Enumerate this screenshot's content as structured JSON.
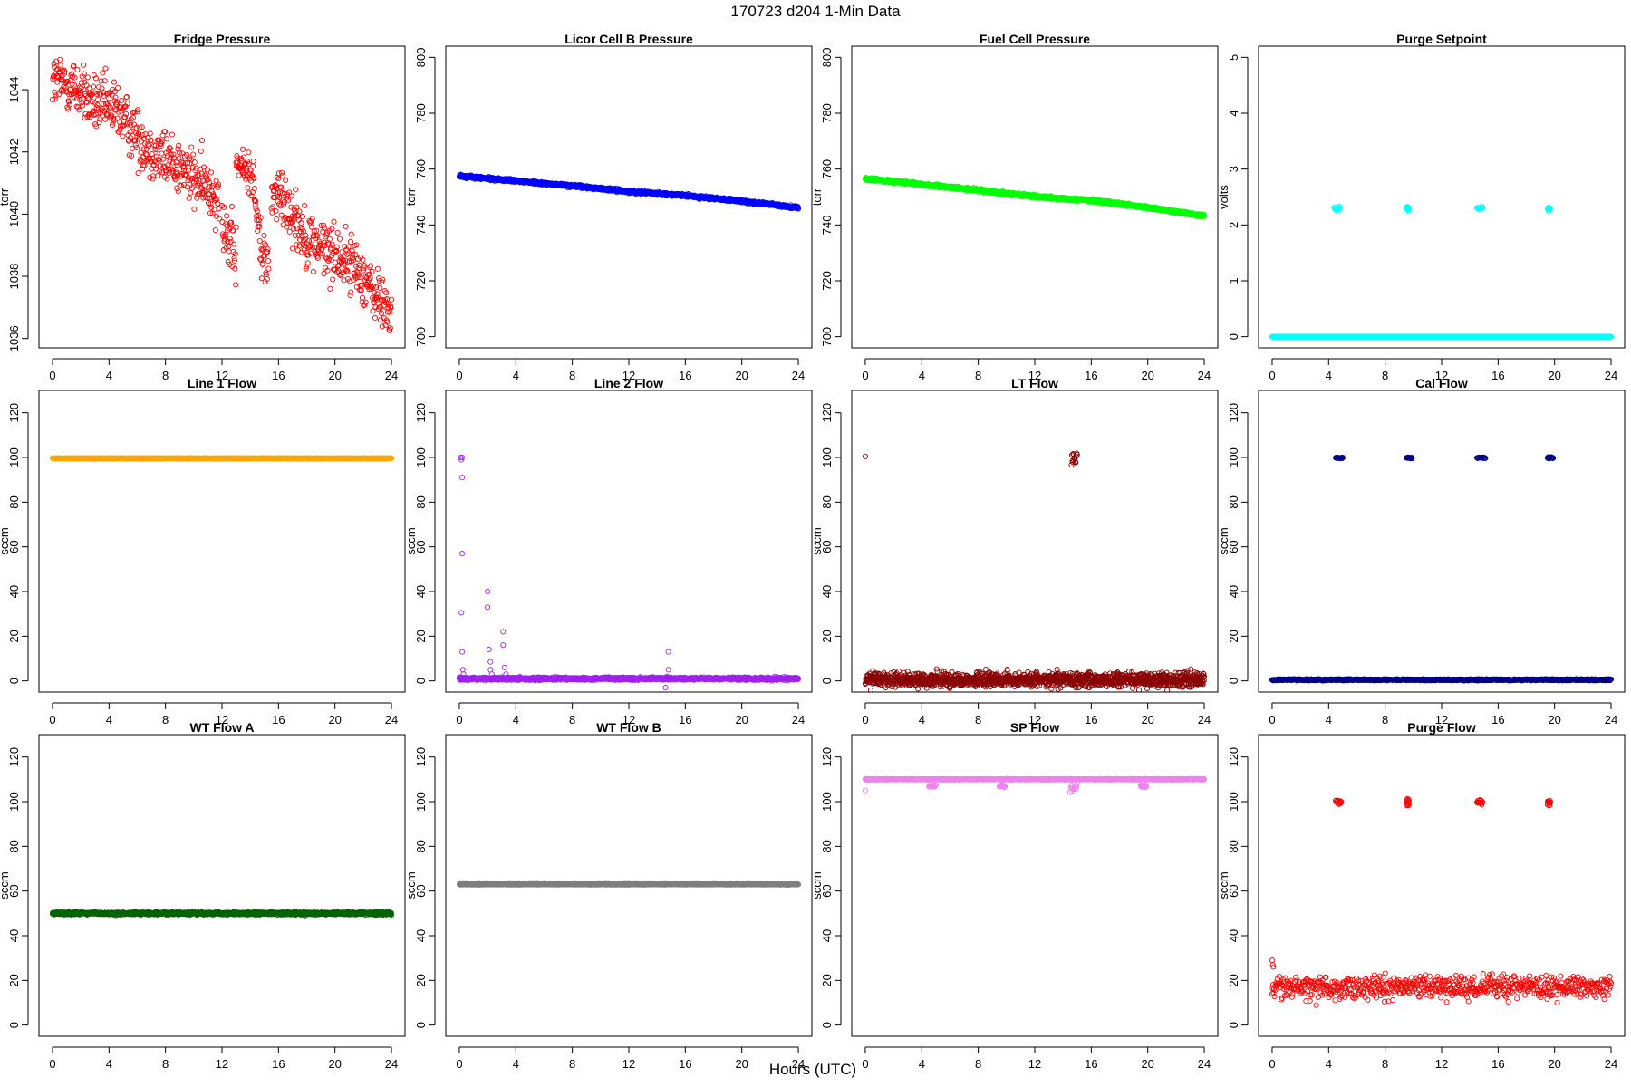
{
  "figure": {
    "title": "170723    d204    1-Min Data",
    "xlabel": "Hours (UTC)"
  },
  "chart_data": [
    {
      "type": "scatter",
      "title": "Fridge Pressure",
      "ylabel": "torr",
      "color": "#ff0000",
      "marker": "open-circle",
      "xlim": [
        -0.96,
        24.96
      ],
      "ylim": [
        1035.7,
        1045.4
      ],
      "xticks": [
        0,
        4,
        8,
        12,
        16,
        20,
        24
      ],
      "yticks": [
        1036,
        1038,
        1040,
        1042,
        1044
      ],
      "series": [
        {
          "segments": [
            {
              "x": [
                0,
                1.5,
                3,
                4.5,
                5.5,
                7,
                8.5,
                9.5,
                10.5,
                11.8
              ],
              "y": [
                1044.3,
                1044.1,
                1043.5,
                1043.4,
                1042.8,
                1042.0,
                1041.7,
                1041.3,
                1041.0,
                1040.6
              ],
              "noise": 0.45
            },
            {
              "x": [
                12.0,
                12.5,
                13.0
              ],
              "y": [
                1040.0,
                1039.0,
                1038.7
              ],
              "noise": 0.5
            },
            {
              "x": [
                13.0,
                13.8,
                14.3
              ],
              "y": [
                1041.6,
                1041.4,
                1041.2
              ],
              "noise": 0.3
            },
            {
              "x": [
                14.3,
                14.9,
                15.3
              ],
              "y": [
                1040.3,
                1038.6,
                1038.3
              ],
              "noise": 0.5
            },
            {
              "x": [
                15.5,
                16.5,
                18,
                20,
                21.5,
                22.5,
                24
              ],
              "y": [
                1040.7,
                1040.4,
                1039.2,
                1038.7,
                1038.3,
                1037.6,
                1036.8
              ],
              "noise": 0.45
            }
          ]
        }
      ],
      "n_points": 900
    },
    {
      "type": "scatter",
      "title": "Licor Cell B Pressure",
      "ylabel": "torr",
      "color": "#0000ff",
      "marker": "open-circle",
      "xlim": [
        -0.96,
        24.96
      ],
      "ylim": [
        696,
        804
      ],
      "xticks": [
        0,
        4,
        8,
        12,
        16,
        20,
        24
      ],
      "yticks": [
        700,
        720,
        740,
        760,
        780,
        800
      ],
      "series": [
        {
          "segments": [
            {
              "x": [
                0,
                3,
                8,
                12,
                16,
                20,
                24
              ],
              "y": [
                757.5,
                756.2,
                754.0,
                752.0,
                750.5,
                748.5,
                746.2
              ],
              "noise": 0.25
            }
          ]
        }
      ],
      "n_points": 1440
    },
    {
      "type": "scatter",
      "title": "Fuel Cell Pressure",
      "ylabel": "torr",
      "color": "#00ff00",
      "marker": "open-circle",
      "xlim": [
        -0.96,
        24.96
      ],
      "ylim": [
        696,
        804
      ],
      "xticks": [
        0,
        4,
        8,
        12,
        16,
        20,
        24
      ],
      "yticks": [
        700,
        720,
        740,
        760,
        780,
        800
      ],
      "series": [
        {
          "segments": [
            {
              "x": [
                0,
                2,
                5,
                8,
                12,
                16,
                20,
                24
              ],
              "y": [
                756.5,
                755.6,
                754.0,
                752.5,
                750.2,
                748.8,
                746.2,
                743.3
              ],
              "noise": 0.25
            }
          ]
        }
      ],
      "n_points": 1440
    },
    {
      "type": "scatter",
      "title": "Purge Setpoint",
      "ylabel": "volts",
      "color": "#00ffff",
      "marker": "open-circle",
      "xlim": [
        -0.96,
        24.96
      ],
      "ylim": [
        -0.2,
        5.2
      ],
      "xticks": [
        0,
        4,
        8,
        12,
        16,
        20,
        24
      ],
      "yticks": [
        0,
        1,
        2,
        3,
        4,
        5
      ],
      "series": [
        {
          "segments": [
            {
              "x": [
                0,
                24
              ],
              "y": [
                0,
                0
              ],
              "noise": 0
            }
          ]
        }
      ],
      "n_points": 1440,
      "clusters": [
        {
          "x": [
            4.4,
            4.8
          ],
          "y": 2.3,
          "noise": 0.02
        },
        {
          "x": [
            9.5,
            9.7
          ],
          "y": 2.3,
          "noise": 0.02
        },
        {
          "x": [
            14.5,
            14.9
          ],
          "y": 2.3,
          "noise": 0.02
        },
        {
          "x": [
            19.5,
            19.7
          ],
          "y": 2.3,
          "noise": 0.02
        }
      ]
    },
    {
      "type": "scatter",
      "title": "Line 1 Flow",
      "ylabel": "sccm",
      "color": "#ffa500",
      "marker": "open-circle",
      "xlim": [
        -0.96,
        24.96
      ],
      "ylim": [
        -5,
        130
      ],
      "xticks": [
        0,
        4,
        8,
        12,
        16,
        20,
        24
      ],
      "yticks": [
        0,
        20,
        40,
        60,
        80,
        100,
        120
      ],
      "series": [
        {
          "segments": [
            {
              "x": [
                0,
                24
              ],
              "y": [
                99.6,
                99.6
              ],
              "noise": 0.1
            }
          ]
        }
      ],
      "n_points": 1440
    },
    {
      "type": "scatter",
      "title": "Line 2 Flow",
      "ylabel": "sccm",
      "color": "#a020f0",
      "marker": "open-circle",
      "xlim": [
        -0.96,
        24.96
      ],
      "ylim": [
        -5,
        130
      ],
      "xticks": [
        0,
        4,
        8,
        12,
        16,
        20,
        24
      ],
      "yticks": [
        0,
        20,
        40,
        60,
        80,
        100,
        120
      ],
      "series": [
        {
          "segments": [
            {
              "x": [
                0,
                24
              ],
              "y": [
                1.0,
                1.0
              ],
              "noise": 0.3
            }
          ]
        }
      ],
      "n_points": 1440,
      "outliers": [
        [
          0.1,
          100
        ],
        [
          0.2,
          100
        ],
        [
          0.15,
          99
        ],
        [
          0.2,
          91
        ],
        [
          0.2,
          57
        ],
        [
          0.15,
          30.5
        ],
        [
          0.2,
          13
        ],
        [
          0.25,
          5
        ],
        [
          0.3,
          3
        ],
        [
          2.0,
          40
        ],
        [
          2.0,
          33
        ],
        [
          2.1,
          14
        ],
        [
          2.2,
          8.5
        ],
        [
          2.2,
          5
        ],
        [
          2.3,
          3
        ],
        [
          3.1,
          22
        ],
        [
          3.1,
          16
        ],
        [
          3.2,
          6
        ],
        [
          3.3,
          3
        ],
        [
          14.8,
          13
        ],
        [
          14.8,
          5
        ],
        [
          14.7,
          2
        ],
        [
          14.6,
          -3
        ]
      ]
    },
    {
      "type": "scatter",
      "title": "LT Flow",
      "ylabel": "sccm",
      "color": "#8b0000",
      "marker": "open-circle",
      "xlim": [
        -0.96,
        24.96
      ],
      "ylim": [
        -5,
        130
      ],
      "xticks": [
        0,
        4,
        8,
        12,
        16,
        20,
        24
      ],
      "yticks": [
        0,
        20,
        40,
        60,
        80,
        100,
        120
      ],
      "series": [
        {
          "segments": [
            {
              "x": [
                0,
                24
              ],
              "y": [
                0.5,
                0.5
              ],
              "noise": 1.6
            }
          ]
        }
      ],
      "n_points": 1440,
      "outliers": [
        [
          0.0,
          100.5
        ]
      ],
      "clusters": [
        {
          "x": [
            14.6,
            15.0
          ],
          "y": 100,
          "noise": 1.2
        }
      ]
    },
    {
      "type": "scatter",
      "title": "Cal Flow",
      "ylabel": "sccm",
      "color": "#00008b",
      "marker": "open-circle",
      "xlim": [
        -0.96,
        24.96
      ],
      "ylim": [
        -5,
        130
      ],
      "xticks": [
        0,
        4,
        8,
        12,
        16,
        20,
        24
      ],
      "yticks": [
        0,
        20,
        40,
        60,
        80,
        100,
        120
      ],
      "series": [
        {
          "segments": [
            {
              "x": [
                0,
                24
              ],
              "y": [
                0.5,
                0.5
              ],
              "noise": 0.15
            }
          ]
        }
      ],
      "n_points": 1440,
      "clusters": [
        {
          "x": [
            4.5,
            5.0
          ],
          "y": 99.8,
          "noise": 0.15
        },
        {
          "x": [
            9.5,
            9.9
          ],
          "y": 99.8,
          "noise": 0.15
        },
        {
          "x": [
            14.5,
            15.1
          ],
          "y": 99.8,
          "noise": 0.15
        },
        {
          "x": [
            19.5,
            19.9
          ],
          "y": 99.8,
          "noise": 0.15
        }
      ]
    },
    {
      "type": "scatter",
      "title": "WT Flow A",
      "ylabel": "sccm",
      "color": "#006400",
      "marker": "open-circle",
      "xlim": [
        -0.96,
        24.96
      ],
      "ylim": [
        -5,
        130
      ],
      "xticks": [
        0,
        4,
        8,
        12,
        16,
        20,
        24
      ],
      "yticks": [
        0,
        20,
        40,
        60,
        80,
        100,
        120
      ],
      "series": [
        {
          "segments": [
            {
              "x": [
                0,
                24
              ],
              "y": [
                50,
                50
              ],
              "noise": 0.3
            }
          ]
        }
      ],
      "n_points": 1440
    },
    {
      "type": "scatter",
      "title": "WT Flow B",
      "ylabel": "sccm",
      "color": "#7f7f7f",
      "marker": "open-circle",
      "xlim": [
        -0.96,
        24.96
      ],
      "ylim": [
        -5,
        130
      ],
      "xticks": [
        0,
        4,
        8,
        12,
        16,
        20,
        24
      ],
      "yticks": [
        0,
        20,
        40,
        60,
        80,
        100,
        120
      ],
      "series": [
        {
          "segments": [
            {
              "x": [
                0,
                24
              ],
              "y": [
                63,
                63
              ],
              "noise": 0.1
            }
          ]
        }
      ],
      "n_points": 1440
    },
    {
      "type": "scatter",
      "title": "SP Flow",
      "ylabel": "sccm",
      "color": "#ee82ee",
      "marker": "open-circle",
      "xlim": [
        -0.96,
        24.96
      ],
      "ylim": [
        -5,
        130
      ],
      "xticks": [
        0,
        4,
        8,
        12,
        16,
        20,
        24
      ],
      "yticks": [
        0,
        20,
        40,
        60,
        80,
        100,
        120
      ],
      "series": [
        {
          "segments": [
            {
              "x": [
                0,
                24
              ],
              "y": [
                110,
                110
              ],
              "noise": 0.1
            }
          ]
        }
      ],
      "n_points": 1440,
      "outliers": [
        [
          0.0,
          105
        ]
      ],
      "clusters": [
        {
          "x": [
            4.5,
            5.0
          ],
          "y": 107,
          "noise": 0.3
        },
        {
          "x": [
            9.5,
            9.9
          ],
          "y": 107,
          "noise": 0.3
        },
        {
          "x": [
            14.5,
            15.0
          ],
          "y": 106,
          "noise": 0.8
        },
        {
          "x": [
            19.5,
            19.9
          ],
          "y": 107,
          "noise": 0.3
        }
      ]
    },
    {
      "type": "scatter",
      "title": "Purge Flow",
      "ylabel": "sccm",
      "color": "#ff0000",
      "marker": "open-circle",
      "xlim": [
        -0.96,
        24.96
      ],
      "ylim": [
        -5,
        130
      ],
      "xticks": [
        0,
        4,
        8,
        12,
        16,
        20,
        24
      ],
      "yticks": [
        0,
        20,
        40,
        60,
        80,
        100,
        120
      ],
      "series": [
        {
          "segments": [
            {
              "x": [
                0,
                24
              ],
              "y": [
                17,
                17
              ],
              "noise": 2.5
            }
          ]
        }
      ],
      "n_points": 700,
      "outliers": [
        [
          0.0,
          29
        ],
        [
          0.05,
          27
        ],
        [
          0.1,
          26
        ]
      ],
      "clusters": [
        {
          "x": [
            4.5,
            4.9
          ],
          "y": 100,
          "noise": 0.5
        },
        {
          "x": [
            9.5,
            9.7
          ],
          "y": 99.5,
          "noise": 0.8
        },
        {
          "x": [
            14.5,
            14.9
          ],
          "y": 100,
          "noise": 0.5
        },
        {
          "x": [
            19.5,
            19.7
          ],
          "y": 99.5,
          "noise": 0.8
        }
      ]
    }
  ]
}
